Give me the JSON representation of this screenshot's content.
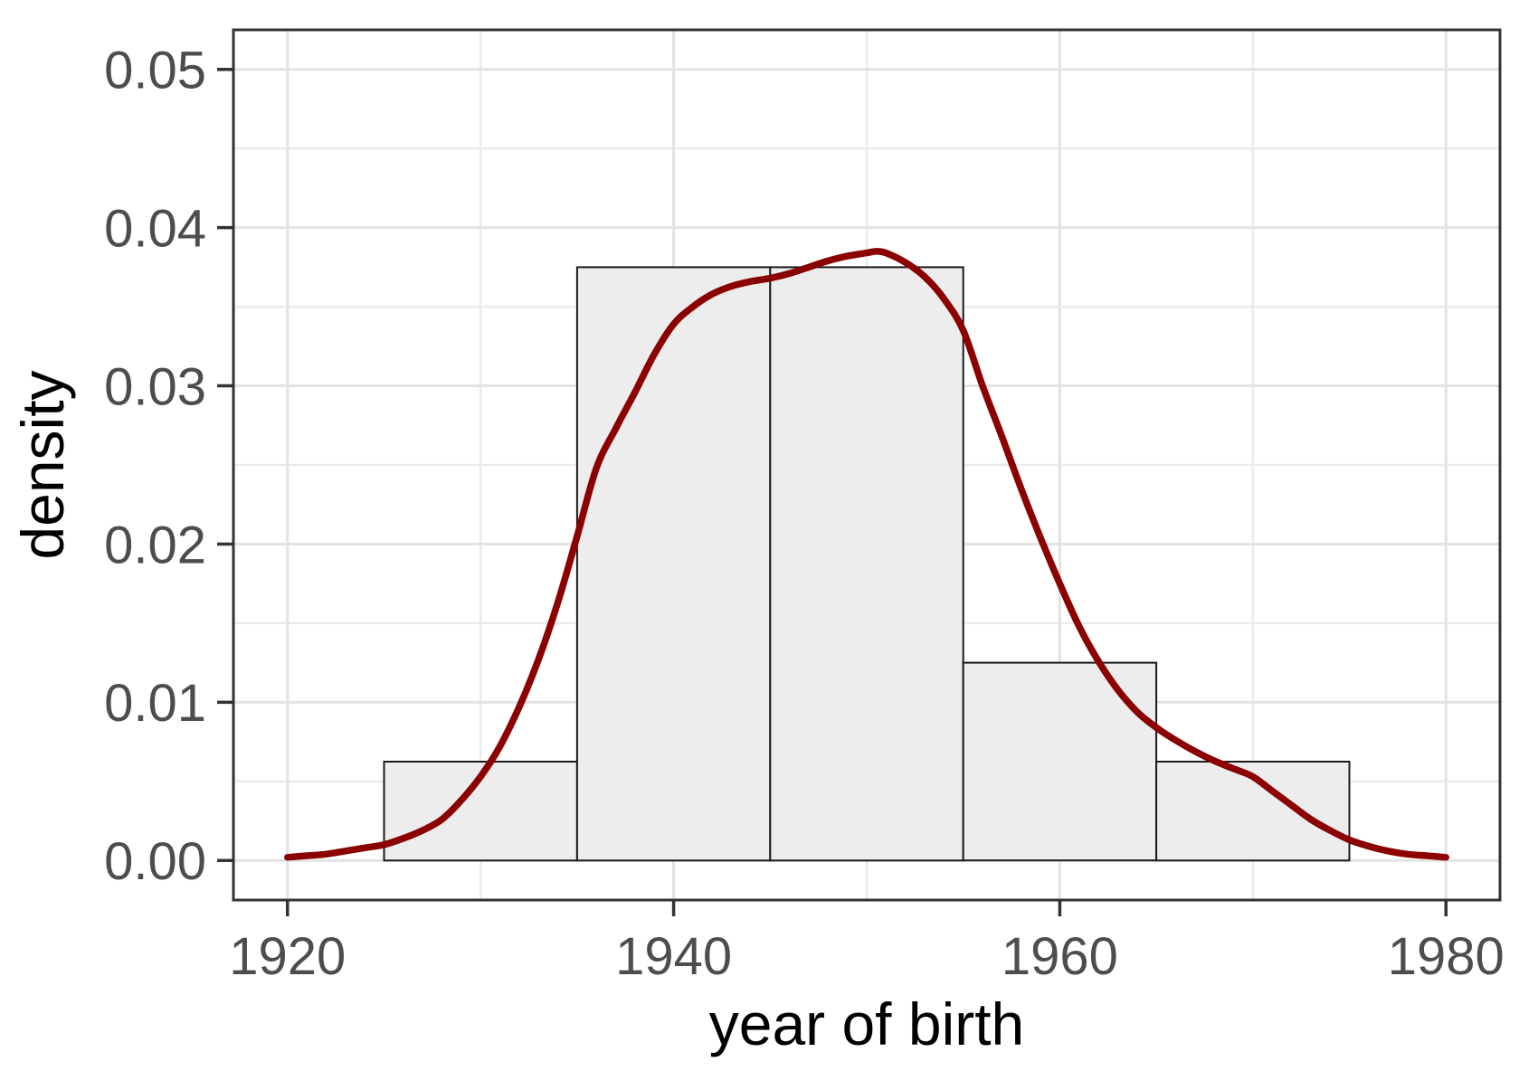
{
  "chart_data": {
    "type": "histogram+density",
    "title": "",
    "xlabel": "year of birth",
    "ylabel": "density",
    "xlim": [
      1917.2,
      1982.8
    ],
    "ylim": [
      -0.0025,
      0.0525
    ],
    "grid": "on",
    "legend": "none",
    "x_major_ticks": [
      {
        "value": 1920,
        "label": "1920"
      },
      {
        "value": 1940,
        "label": "1940"
      },
      {
        "value": 1960,
        "label": "1960"
      },
      {
        "value": 1980,
        "label": "1980"
      }
    ],
    "x_minor_ticks": [
      1930,
      1950,
      1970
    ],
    "y_major_ticks": [
      {
        "value": 0.0,
        "label": "0.00"
      },
      {
        "value": 0.01,
        "label": "0.01"
      },
      {
        "value": 0.02,
        "label": "0.02"
      },
      {
        "value": 0.03,
        "label": "0.03"
      },
      {
        "value": 0.04,
        "label": "0.04"
      },
      {
        "value": 0.05,
        "label": "0.05"
      }
    ],
    "y_minor_ticks": [
      0.005,
      0.015,
      0.025,
      0.035,
      0.045
    ],
    "histogram": {
      "bin_width_years": 10,
      "bars": [
        {
          "x0": 1925,
          "x1": 1935,
          "density": 0.00625
        },
        {
          "x0": 1935,
          "x1": 1945,
          "density": 0.0375
        },
        {
          "x0": 1945,
          "x1": 1955,
          "density": 0.0375
        },
        {
          "x0": 1955,
          "x1": 1965,
          "density": 0.0125
        },
        {
          "x0": 1965,
          "x1": 1975,
          "density": 0.00625
        }
      ]
    },
    "density_curve": {
      "points": [
        [
          1920,
          0.0002
        ],
        [
          1921,
          0.0003
        ],
        [
          1922,
          0.0004
        ],
        [
          1923,
          0.0006
        ],
        [
          1924,
          0.0008
        ],
        [
          1925,
          0.001
        ],
        [
          1926,
          0.0014
        ],
        [
          1927,
          0.0019
        ],
        [
          1928,
          0.0026
        ],
        [
          1929,
          0.0038
        ],
        [
          1930,
          0.0053
        ],
        [
          1931,
          0.0072
        ],
        [
          1932,
          0.0097
        ],
        [
          1933,
          0.0127
        ],
        [
          1934,
          0.0163
        ],
        [
          1935,
          0.0205
        ],
        [
          1936,
          0.0248
        ],
        [
          1937,
          0.0273
        ],
        [
          1938,
          0.0296
        ],
        [
          1939,
          0.032
        ],
        [
          1940,
          0.0339
        ],
        [
          1941,
          0.035
        ],
        [
          1942,
          0.0358
        ],
        [
          1943,
          0.0363
        ],
        [
          1944,
          0.0366
        ],
        [
          1945,
          0.0368
        ],
        [
          1946,
          0.0371
        ],
        [
          1947,
          0.0375
        ],
        [
          1948,
          0.0379
        ],
        [
          1949,
          0.0382
        ],
        [
          1950,
          0.0384
        ],
        [
          1950.5,
          0.0385
        ],
        [
          1951,
          0.0384
        ],
        [
          1952,
          0.0378
        ],
        [
          1953,
          0.0369
        ],
        [
          1954,
          0.0355
        ],
        [
          1955,
          0.0335
        ],
        [
          1956,
          0.03
        ],
        [
          1957,
          0.0268
        ],
        [
          1958,
          0.0235
        ],
        [
          1959,
          0.0204
        ],
        [
          1960,
          0.0175
        ],
        [
          1961,
          0.0148
        ],
        [
          1962,
          0.0126
        ],
        [
          1963,
          0.0108
        ],
        [
          1964,
          0.0094
        ],
        [
          1965,
          0.0084
        ],
        [
          1966,
          0.0076
        ],
        [
          1967,
          0.0069
        ],
        [
          1968,
          0.0063
        ],
        [
          1969,
          0.0058
        ],
        [
          1970,
          0.0053
        ],
        [
          1971,
          0.0044
        ],
        [
          1972,
          0.0035
        ],
        [
          1973,
          0.0026
        ],
        [
          1974,
          0.0019
        ],
        [
          1975,
          0.0013
        ],
        [
          1976,
          0.0009
        ],
        [
          1977,
          0.0006
        ],
        [
          1978,
          0.0004
        ],
        [
          1979,
          0.0003
        ],
        [
          1980,
          0.0002
        ]
      ]
    },
    "colors": {
      "background": "#ffffff",
      "panel_background": "#ffffff",
      "grid_major": "#e3e3e3",
      "grid_minor": "#ebebeb",
      "bar_fill": "#ededed",
      "bar_stroke": "#1a1a1a",
      "curve": "#8b0000",
      "panel_border": "#333333",
      "tick_mark": "#333333",
      "tick_label": "#4d4d4d",
      "axis_title": "#000000"
    }
  }
}
